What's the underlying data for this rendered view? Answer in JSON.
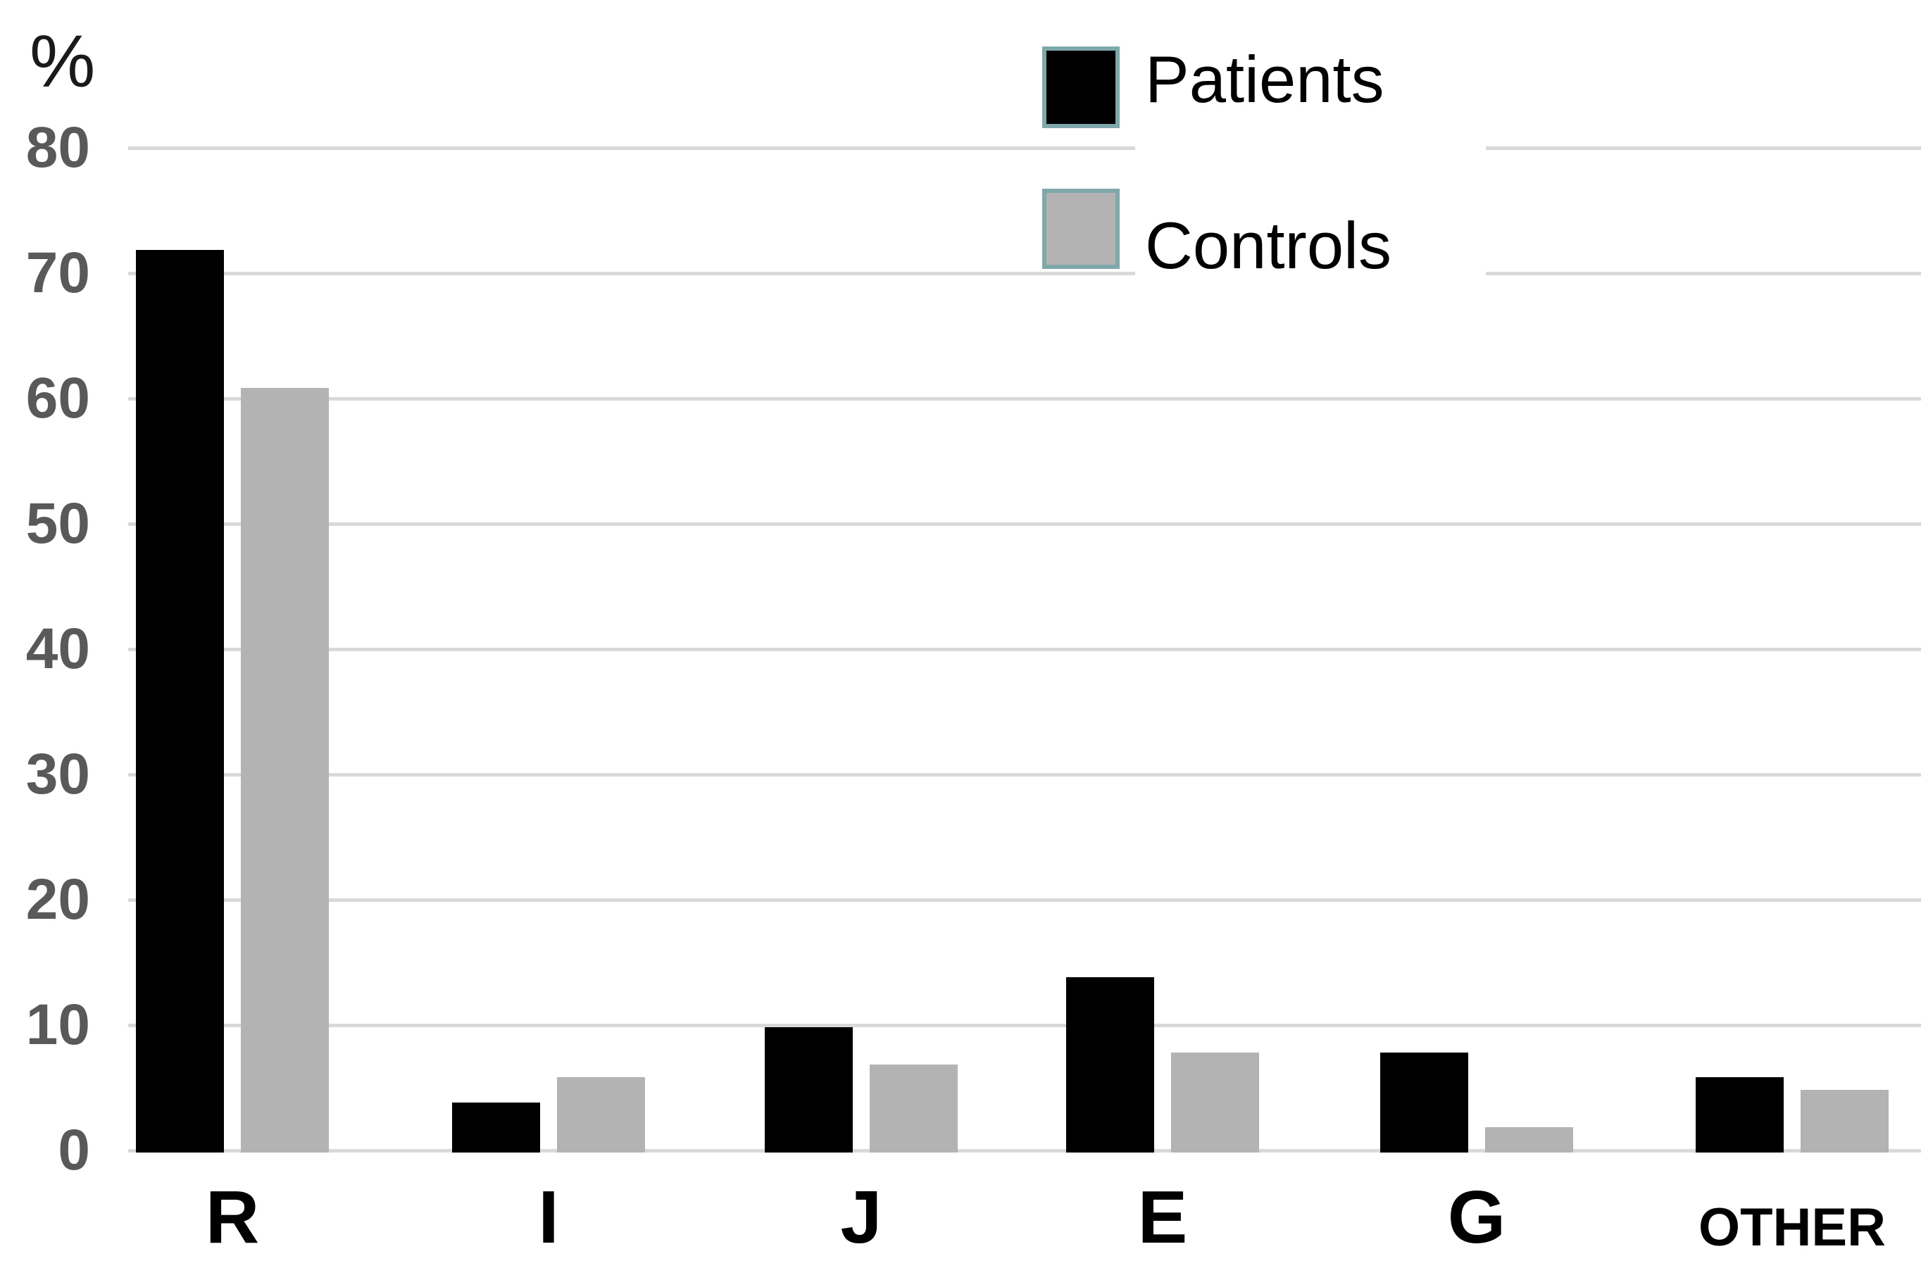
{
  "chart_data": {
    "type": "bar",
    "title": "",
    "xlabel": "",
    "ylabel": "%",
    "categories": [
      "R",
      "I",
      "J",
      "E",
      "G",
      "OTHER"
    ],
    "series": [
      {
        "name": "Patients",
        "color": "#000000",
        "values": [
          72,
          4,
          10,
          14,
          8,
          6
        ]
      },
      {
        "name": "Controls",
        "color": "#b3b3b3",
        "values": [
          61,
          6,
          7,
          8,
          2,
          5
        ]
      }
    ],
    "ylim": [
      0,
      80
    ],
    "yticks": [
      0,
      10,
      20,
      30,
      40,
      50,
      60,
      70,
      80
    ],
    "grid": true,
    "legend_position": "top-right",
    "colors": {
      "gridline": "#d9d9d9",
      "tick_label": "#595959",
      "category_label": "#000000",
      "legend_swatch_border": "#7fa8ab",
      "background": "#ffffff"
    }
  }
}
